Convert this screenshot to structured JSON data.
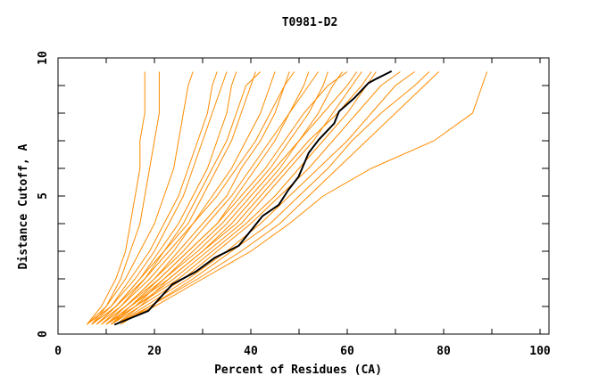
{
  "chart_data": {
    "type": "line",
    "title": "T0981-D2",
    "xlabel": "Percent of Residues (CA)",
    "ylabel": "Distance Cutoff, A",
    "xlim": [
      0,
      100
    ],
    "ylim": [
      0,
      10
    ],
    "x_tick_labels": [
      "0",
      "20",
      "40",
      "60",
      "80",
      "100"
    ],
    "y_tick_labels": [
      "0",
      "5",
      "10"
    ],
    "grid": false,
    "colors": {
      "models": "#ff8c00",
      "highlight": "#000000"
    },
    "model_y_levels": [
      0.35,
      1,
      2,
      3,
      4,
      5,
      6,
      7,
      8,
      9,
      9.5
    ],
    "model_series": [
      [
        6,
        9,
        12,
        14,
        15,
        16,
        17,
        17,
        18,
        18,
        18
      ],
      [
        6,
        10,
        13,
        15,
        17,
        18,
        19,
        20,
        21,
        21,
        21
      ],
      [
        7,
        10,
        14,
        17,
        20,
        22,
        24,
        25,
        26,
        27,
        28
      ],
      [
        6,
        11,
        15,
        19,
        22,
        25,
        27,
        29,
        31,
        32,
        33
      ],
      [
        7,
        12,
        17,
        21,
        25,
        28,
        31,
        33,
        35,
        36,
        37
      ],
      [
        8,
        12,
        18,
        22,
        27,
        30,
        33,
        36,
        38,
        40,
        41
      ],
      [
        8,
        13,
        19,
        24,
        28,
        32,
        36,
        39,
        42,
        44,
        45
      ],
      [
        9,
        14,
        20,
        25,
        30,
        35,
        38,
        42,
        45,
        47,
        48
      ],
      [
        9,
        14,
        21,
        27,
        33,
        37,
        41,
        45,
        48,
        51,
        52
      ],
      [
        10,
        15,
        22,
        28,
        34,
        39,
        44,
        48,
        52,
        55,
        56
      ],
      [
        10,
        15,
        23,
        30,
        36,
        41,
        46,
        50,
        54,
        57,
        59
      ],
      [
        10,
        16,
        24,
        31,
        38,
        43,
        48,
        53,
        57,
        61,
        63
      ],
      [
        11,
        16,
        25,
        32,
        39,
        45,
        50,
        55,
        60,
        64,
        66
      ],
      [
        11,
        17,
        26,
        33,
        40,
        46,
        52,
        57,
        62,
        67,
        71
      ],
      [
        12,
        18,
        27,
        35,
        42,
        48,
        54,
        60,
        65,
        70,
        74
      ],
      [
        12,
        19,
        28,
        36,
        44,
        50,
        56,
        61,
        67,
        74,
        77
      ],
      [
        13,
        19,
        29,
        38,
        46,
        52,
        58,
        64,
        70,
        76,
        79
      ],
      [
        12,
        20,
        30,
        40,
        48,
        55,
        65,
        78,
        86,
        88,
        89
      ],
      [
        7,
        11,
        16,
        20,
        23,
        26,
        28,
        30,
        32,
        34,
        35
      ],
      [
        8,
        12,
        17,
        22,
        26,
        29,
        32,
        35,
        37,
        39,
        42
      ],
      [
        9,
        13,
        18,
        23,
        28,
        33,
        37,
        41,
        44,
        47,
        49
      ],
      [
        10,
        14,
        20,
        26,
        31,
        36,
        40,
        44,
        48,
        52,
        54
      ],
      [
        11,
        15,
        21,
        27,
        33,
        38,
        43,
        47,
        51,
        56,
        60
      ],
      [
        11,
        16,
        22,
        29,
        35,
        40,
        45,
        50,
        55,
        60,
        62
      ],
      [
        12,
        17,
        23,
        30,
        37,
        42,
        47,
        52,
        58,
        63,
        65
      ]
    ],
    "highlight_series": {
      "x": [
        11.7,
        18.7,
        23.7,
        28.6,
        32.5,
        37.5,
        42.4,
        45.8,
        47.7,
        49.9,
        52.0,
        54.1,
        57.3,
        58.3,
        61.5,
        64.4,
        66.1,
        69.2
      ],
      "y": [
        0.34,
        0.84,
        1.8,
        2.26,
        2.76,
        3.2,
        4.27,
        4.68,
        5.2,
        5.7,
        6.56,
        7.04,
        7.63,
        8.06,
        8.55,
        9.09,
        9.25,
        9.52
      ]
    }
  }
}
